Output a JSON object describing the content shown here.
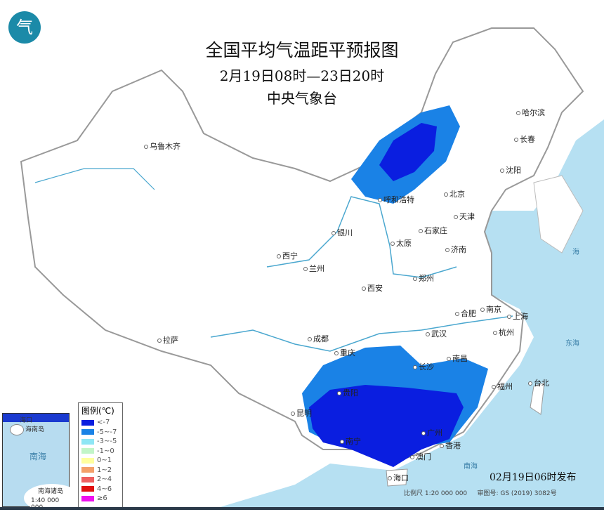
{
  "header": {
    "title": "全国平均气温距平预报图",
    "period": "2月19日08时—23日20时",
    "issuer": "中央气象台"
  },
  "logo": {
    "text": "气"
  },
  "legend": {
    "title": "图例(℃)",
    "items": [
      {
        "label": "<-7",
        "color": "#0a1ee0"
      },
      {
        "label": "-5~-7",
        "color": "#1a82e6"
      },
      {
        "label": "-3~-5",
        "color": "#8ee6f5"
      },
      {
        "label": "-1~0",
        "color": "#c2f5c8"
      },
      {
        "label": "0~1",
        "color": "#ffff9e"
      },
      {
        "label": "1~2",
        "color": "#f4a06a"
      },
      {
        "label": "2~4",
        "color": "#ee6060"
      },
      {
        "label": "4~6",
        "color": "#e01010"
      },
      {
        "label": "≥6",
        "color": "#ee10ee"
      }
    ]
  },
  "cities": [
    {
      "name": "乌鲁木齐"
    },
    {
      "name": "哈尔滨"
    },
    {
      "name": "长春"
    },
    {
      "name": "沈阳"
    },
    {
      "name": "呼和浩特"
    },
    {
      "name": "北京"
    },
    {
      "name": "天津"
    },
    {
      "name": "石家庄"
    },
    {
      "name": "太原"
    },
    {
      "name": "济南"
    },
    {
      "name": "银川"
    },
    {
      "name": "西宁"
    },
    {
      "name": "兰州"
    },
    {
      "name": "西安"
    },
    {
      "name": "郑州"
    },
    {
      "name": "合肥"
    },
    {
      "name": "南京"
    },
    {
      "name": "上海"
    },
    {
      "name": "杭州"
    },
    {
      "name": "武汉"
    },
    {
      "name": "成都"
    },
    {
      "name": "重庆"
    },
    {
      "name": "长沙"
    },
    {
      "name": "南昌"
    },
    {
      "name": "福州"
    },
    {
      "name": "台北"
    },
    {
      "name": "拉萨"
    },
    {
      "name": "昆明"
    },
    {
      "name": "贵阳"
    },
    {
      "name": "南宁"
    },
    {
      "name": "广州"
    },
    {
      "name": "香港"
    },
    {
      "name": "澳门"
    },
    {
      "name": "海口"
    }
  ],
  "inset": {
    "label": "南海",
    "name": "南海诸岛",
    "scale": "1:40 000 000",
    "haikou": "海口",
    "hainan": "海南岛"
  },
  "footer": {
    "published": "02月19日06时发布",
    "scale": "比例尺 1:20 000 000",
    "map_no": "审图号: GS (2019) 3082号"
  },
  "sea_labels": {
    "east": "东海",
    "south": "南海",
    "yellow": "海"
  }
}
